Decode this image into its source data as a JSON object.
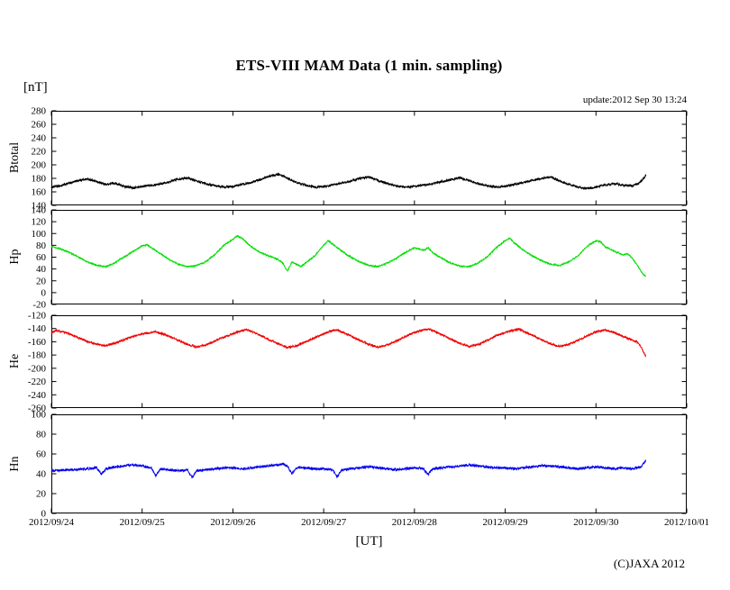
{
  "page": {
    "title": "ETS-VIII MAM Data (1 min. sampling)",
    "y_unit_label": "[nT]",
    "x_unit_label": "[UT]",
    "update_text": "update:2012 Sep 30 13:24",
    "copyright": "(C)JAXA 2012"
  },
  "chart_data": {
    "type": "line",
    "title": "ETS-VIII MAM Data (1 min. sampling)",
    "xlabel": "[UT]",
    "unit": "[nT]",
    "grid": false,
    "legend": "none",
    "x_domain_days": [
      0,
      7
    ],
    "data_end_day": 6.55,
    "x_tick_labels": [
      "2012/09/24",
      "2012/09/25",
      "2012/09/26",
      "2012/09/27",
      "2012/09/28",
      "2012/09/29",
      "2012/09/30",
      "2012/10/01"
    ],
    "panels": [
      {
        "label": "Btotal",
        "color": "#000000",
        "ylim": [
          140,
          280
        ],
        "ytick": 20,
        "noise_amplitude": 1.8,
        "points": [
          [
            0,
            167
          ],
          [
            0.1,
            169
          ],
          [
            0.2,
            173
          ],
          [
            0.3,
            177
          ],
          [
            0.4,
            179
          ],
          [
            0.5,
            175
          ],
          [
            0.6,
            171
          ],
          [
            0.7,
            173
          ],
          [
            0.8,
            168
          ],
          [
            0.9,
            166
          ],
          [
            1,
            168
          ],
          [
            1.1,
            170
          ],
          [
            1.2,
            172
          ],
          [
            1.3,
            175
          ],
          [
            1.4,
            179
          ],
          [
            1.5,
            181
          ],
          [
            1.6,
            176
          ],
          [
            1.7,
            172
          ],
          [
            1.8,
            169
          ],
          [
            1.9,
            167
          ],
          [
            2,
            168
          ],
          [
            2.1,
            171
          ],
          [
            2.2,
            174
          ],
          [
            2.3,
            178
          ],
          [
            2.4,
            183
          ],
          [
            2.5,
            186
          ],
          [
            2.6,
            180
          ],
          [
            2.7,
            174
          ],
          [
            2.8,
            170
          ],
          [
            2.9,
            167
          ],
          [
            3,
            168
          ],
          [
            3.1,
            170
          ],
          [
            3.2,
            173
          ],
          [
            3.3,
            176
          ],
          [
            3.4,
            180
          ],
          [
            3.5,
            182
          ],
          [
            3.6,
            177
          ],
          [
            3.7,
            172
          ],
          [
            3.8,
            169
          ],
          [
            3.9,
            167
          ],
          [
            4,
            168
          ],
          [
            4.1,
            170
          ],
          [
            4.2,
            172
          ],
          [
            4.3,
            175
          ],
          [
            4.4,
            178
          ],
          [
            4.5,
            181
          ],
          [
            4.6,
            177
          ],
          [
            4.7,
            172
          ],
          [
            4.8,
            169
          ],
          [
            4.9,
            167
          ],
          [
            5,
            168
          ],
          [
            5.1,
            171
          ],
          [
            5.2,
            174
          ],
          [
            5.3,
            177
          ],
          [
            5.4,
            180
          ],
          [
            5.5,
            182
          ],
          [
            5.6,
            176
          ],
          [
            5.7,
            171
          ],
          [
            5.8,
            167
          ],
          [
            5.9,
            165
          ],
          [
            6,
            167
          ],
          [
            6.1,
            170
          ],
          [
            6.2,
            172
          ],
          [
            6.3,
            170
          ],
          [
            6.4,
            169
          ],
          [
            6.45,
            171
          ],
          [
            6.5,
            176
          ],
          [
            6.55,
            185
          ]
        ]
      },
      {
        "label": "Hp",
        "color": "#00dd00",
        "ylim": [
          -20,
          140
        ],
        "ytick": 20,
        "noise_amplitude": 1.2,
        "points": [
          [
            0,
            78
          ],
          [
            0.1,
            74
          ],
          [
            0.2,
            68
          ],
          [
            0.3,
            60
          ],
          [
            0.4,
            52
          ],
          [
            0.5,
            46
          ],
          [
            0.6,
            44
          ],
          [
            0.7,
            50
          ],
          [
            0.75,
            56
          ],
          [
            0.8,
            60
          ],
          [
            0.9,
            70
          ],
          [
            1,
            79
          ],
          [
            1.05,
            81
          ],
          [
            1.1,
            76
          ],
          [
            1.2,
            66
          ],
          [
            1.3,
            56
          ],
          [
            1.4,
            48
          ],
          [
            1.5,
            44
          ],
          [
            1.6,
            46
          ],
          [
            1.7,
            52
          ],
          [
            1.8,
            64
          ],
          [
            1.9,
            80
          ],
          [
            2,
            90
          ],
          [
            2.05,
            96
          ],
          [
            2.1,
            92
          ],
          [
            2.2,
            78
          ],
          [
            2.3,
            68
          ],
          [
            2.4,
            62
          ],
          [
            2.5,
            56
          ],
          [
            2.55,
            50
          ],
          [
            2.6,
            36
          ],
          [
            2.65,
            52
          ],
          [
            2.7,
            48
          ],
          [
            2.75,
            44
          ],
          [
            2.8,
            50
          ],
          [
            2.9,
            62
          ],
          [
            3,
            80
          ],
          [
            3.05,
            88
          ],
          [
            3.1,
            82
          ],
          [
            3.2,
            70
          ],
          [
            3.3,
            60
          ],
          [
            3.4,
            52
          ],
          [
            3.5,
            46
          ],
          [
            3.6,
            44
          ],
          [
            3.7,
            50
          ],
          [
            3.8,
            58
          ],
          [
            3.9,
            68
          ],
          [
            4,
            76
          ],
          [
            4.1,
            72
          ],
          [
            4.15,
            76
          ],
          [
            4.2,
            68
          ],
          [
            4.3,
            58
          ],
          [
            4.4,
            50
          ],
          [
            4.5,
            45
          ],
          [
            4.6,
            44
          ],
          [
            4.7,
            50
          ],
          [
            4.8,
            60
          ],
          [
            4.9,
            76
          ],
          [
            5,
            88
          ],
          [
            5.05,
            92
          ],
          [
            5.1,
            84
          ],
          [
            5.2,
            72
          ],
          [
            5.3,
            62
          ],
          [
            5.4,
            54
          ],
          [
            5.5,
            48
          ],
          [
            5.6,
            46
          ],
          [
            5.7,
            52
          ],
          [
            5.8,
            62
          ],
          [
            5.9,
            78
          ],
          [
            6,
            88
          ],
          [
            6.05,
            86
          ],
          [
            6.1,
            78
          ],
          [
            6.2,
            70
          ],
          [
            6.3,
            64
          ],
          [
            6.35,
            66
          ],
          [
            6.4,
            58
          ],
          [
            6.45,
            48
          ],
          [
            6.5,
            35
          ],
          [
            6.55,
            27
          ]
        ]
      },
      {
        "label": "He",
        "color": "#ee0000",
        "ylim": [
          -260,
          -120
        ],
        "ytick": 20,
        "noise_amplitude": 1.6,
        "points": [
          [
            0,
            -146
          ],
          [
            0.05,
            -143
          ],
          [
            0.1,
            -144
          ],
          [
            0.2,
            -148
          ],
          [
            0.3,
            -154
          ],
          [
            0.4,
            -160
          ],
          [
            0.5,
            -164
          ],
          [
            0.6,
            -166
          ],
          [
            0.7,
            -162
          ],
          [
            0.8,
            -157
          ],
          [
            0.9,
            -152
          ],
          [
            1,
            -148
          ],
          [
            1.1,
            -146
          ],
          [
            1.15,
            -145
          ],
          [
            1.2,
            -147
          ],
          [
            1.3,
            -152
          ],
          [
            1.4,
            -158
          ],
          [
            1.5,
            -164
          ],
          [
            1.6,
            -168
          ],
          [
            1.7,
            -165
          ],
          [
            1.8,
            -159
          ],
          [
            1.9,
            -153
          ],
          [
            2,
            -148
          ],
          [
            2.1,
            -143
          ],
          [
            2.15,
            -142
          ],
          [
            2.2,
            -144
          ],
          [
            2.3,
            -150
          ],
          [
            2.4,
            -157
          ],
          [
            2.5,
            -163
          ],
          [
            2.6,
            -169
          ],
          [
            2.7,
            -166
          ],
          [
            2.8,
            -160
          ],
          [
            2.9,
            -154
          ],
          [
            3,
            -148
          ],
          [
            3.1,
            -143
          ],
          [
            3.15,
            -142
          ],
          [
            3.2,
            -145
          ],
          [
            3.3,
            -151
          ],
          [
            3.4,
            -158
          ],
          [
            3.5,
            -164
          ],
          [
            3.6,
            -168
          ],
          [
            3.7,
            -165
          ],
          [
            3.8,
            -159
          ],
          [
            3.9,
            -152
          ],
          [
            4,
            -146
          ],
          [
            4.1,
            -142
          ],
          [
            4.15,
            -141
          ],
          [
            4.2,
            -143
          ],
          [
            4.3,
            -149
          ],
          [
            4.4,
            -156
          ],
          [
            4.5,
            -162
          ],
          [
            4.6,
            -167
          ],
          [
            4.7,
            -164
          ],
          [
            4.8,
            -158
          ],
          [
            4.9,
            -151
          ],
          [
            5,
            -146
          ],
          [
            5.1,
            -142
          ],
          [
            5.15,
            -141
          ],
          [
            5.2,
            -144
          ],
          [
            5.3,
            -150
          ],
          [
            5.4,
            -157
          ],
          [
            5.5,
            -163
          ],
          [
            5.6,
            -167
          ],
          [
            5.7,
            -164
          ],
          [
            5.8,
            -158
          ],
          [
            5.9,
            -151
          ],
          [
            6,
            -145
          ],
          [
            6.1,
            -142
          ],
          [
            6.2,
            -146
          ],
          [
            6.3,
            -152
          ],
          [
            6.4,
            -158
          ],
          [
            6.45,
            -160
          ],
          [
            6.5,
            -168
          ],
          [
            6.55,
            -183
          ]
        ]
      },
      {
        "label": "Hn",
        "color": "#0000ee",
        "ylim": [
          0,
          100
        ],
        "ytick": 20,
        "noise_amplitude": 1.3,
        "points": [
          [
            0,
            43
          ],
          [
            0.2,
            44
          ],
          [
            0.4,
            45
          ],
          [
            0.5,
            46
          ],
          [
            0.55,
            40
          ],
          [
            0.6,
            45
          ],
          [
            0.7,
            47
          ],
          [
            0.8,
            48
          ],
          [
            0.9,
            49
          ],
          [
            1,
            48
          ],
          [
            1.1,
            46
          ],
          [
            1.15,
            38
          ],
          [
            1.2,
            45
          ],
          [
            1.3,
            44
          ],
          [
            1.4,
            43
          ],
          [
            1.5,
            44
          ],
          [
            1.55,
            36
          ],
          [
            1.6,
            43
          ],
          [
            1.7,
            44
          ],
          [
            1.8,
            45
          ],
          [
            1.9,
            46
          ],
          [
            2,
            46
          ],
          [
            2.1,
            45
          ],
          [
            2.2,
            46
          ],
          [
            2.3,
            47
          ],
          [
            2.4,
            48
          ],
          [
            2.5,
            49
          ],
          [
            2.55,
            50
          ],
          [
            2.6,
            48
          ],
          [
            2.65,
            40
          ],
          [
            2.7,
            46
          ],
          [
            2.8,
            46
          ],
          [
            2.9,
            45
          ],
          [
            3,
            45
          ],
          [
            3.1,
            44
          ],
          [
            3.15,
            37
          ],
          [
            3.2,
            44
          ],
          [
            3.3,
            45
          ],
          [
            3.4,
            46
          ],
          [
            3.5,
            47
          ],
          [
            3.6,
            46
          ],
          [
            3.7,
            45
          ],
          [
            3.8,
            44
          ],
          [
            3.9,
            45
          ],
          [
            4,
            46
          ],
          [
            4.1,
            45
          ],
          [
            4.15,
            39
          ],
          [
            4.2,
            45
          ],
          [
            4.3,
            46
          ],
          [
            4.4,
            47
          ],
          [
            4.5,
            48
          ],
          [
            4.6,
            49
          ],
          [
            4.7,
            48
          ],
          [
            4.8,
            47
          ],
          [
            4.9,
            46
          ],
          [
            5,
            46
          ],
          [
            5.1,
            45
          ],
          [
            5.2,
            46
          ],
          [
            5.3,
            47
          ],
          [
            5.4,
            48
          ],
          [
            5.5,
            48
          ],
          [
            5.6,
            47
          ],
          [
            5.7,
            46
          ],
          [
            5.8,
            45
          ],
          [
            5.9,
            46
          ],
          [
            6,
            47
          ],
          [
            6.1,
            46
          ],
          [
            6.2,
            45
          ],
          [
            6.3,
            46
          ],
          [
            6.4,
            45
          ],
          [
            6.5,
            47
          ],
          [
            6.55,
            54
          ]
        ]
      }
    ]
  }
}
